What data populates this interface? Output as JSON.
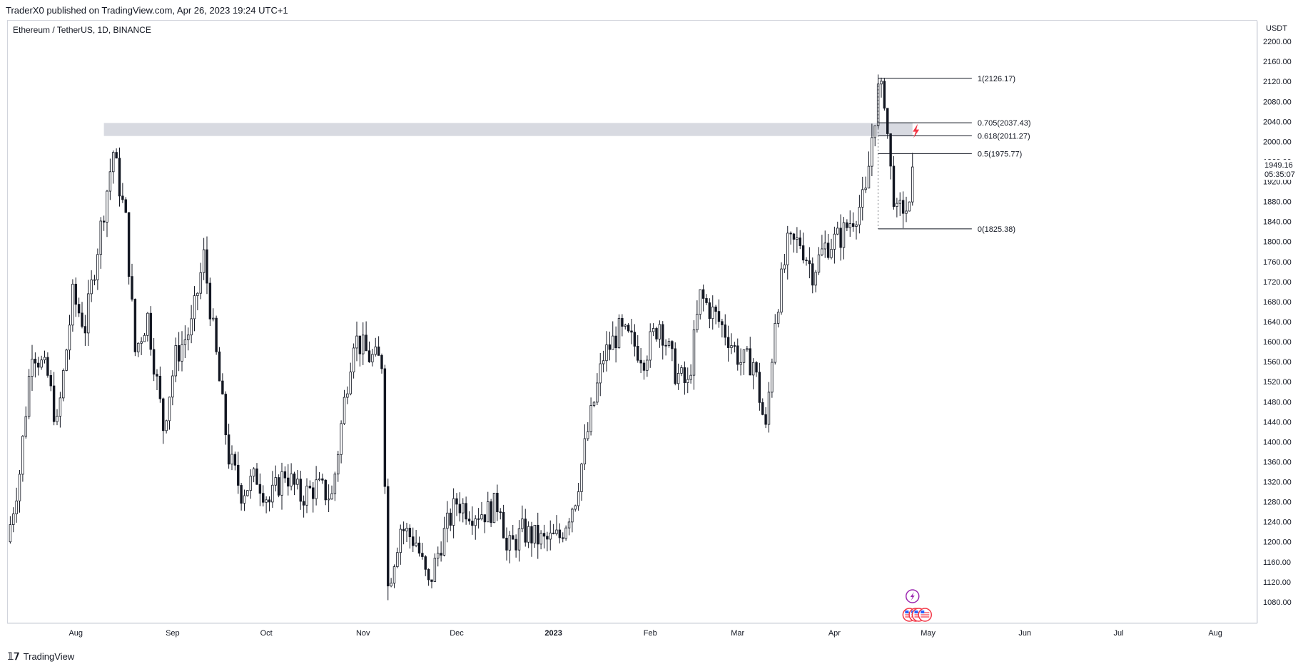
{
  "header": {
    "publish_line": "TraderX0 published on TradingView.com, Apr 26, 2023 19:24 UTC+1",
    "symbol_title": "Ethereum / TetherUS, 1D, BINANCE"
  },
  "footer": {
    "brand": "TradingView",
    "logo_icon": "tradingview-logo-icon"
  },
  "colors": {
    "candle": "#131722",
    "zone": "#d1d4dc",
    "fib_line": "#131722",
    "signal": "#f23645",
    "event_purple": "#9c27b0",
    "event_red": "#f23645"
  },
  "chart_data": {
    "type": "candlestick",
    "title": "Ethereum / TetherUS, 1D, BINANCE",
    "y_unit": "USDT",
    "ylim": [
      1040,
      2240
    ],
    "y_ticks": [
      "2200.00",
      "2160.00",
      "2120.00",
      "2080.00",
      "2040.00",
      "2000.00",
      "1960.00",
      "1920.00",
      "1880.00",
      "1840.00",
      "1800.00",
      "1760.00",
      "1720.00",
      "1680.00",
      "1640.00",
      "1600.00",
      "1560.00",
      "1520.00",
      "1480.00",
      "1440.00",
      "1400.00",
      "1360.00",
      "1320.00",
      "1280.00",
      "1240.00",
      "1200.00",
      "1160.00",
      "1120.00",
      "1080.00"
    ],
    "x_start": "2022-07-10",
    "x_end": "2023-08-14",
    "x_ticks": [
      {
        "label": "Aug",
        "date": "2022-08-01"
      },
      {
        "label": "Sep",
        "date": "2022-09-01"
      },
      {
        "label": "Oct",
        "date": "2022-10-01"
      },
      {
        "label": "Nov",
        "date": "2022-11-01"
      },
      {
        "label": "Dec",
        "date": "2022-12-01"
      },
      {
        "label": "2023",
        "date": "2023-01-01"
      },
      {
        "label": "Feb",
        "date": "2023-02-01"
      },
      {
        "label": "Mar",
        "date": "2023-03-01"
      },
      {
        "label": "Apr",
        "date": "2023-04-01"
      },
      {
        "label": "May",
        "date": "2023-05-01"
      },
      {
        "label": "Jun",
        "date": "2023-06-01"
      },
      {
        "label": "Jul",
        "date": "2023-07-01"
      },
      {
        "label": "Aug",
        "date": "2023-08-01"
      }
    ],
    "price_path": [
      {
        "date": "2022-07-10",
        "close": 1200
      },
      {
        "date": "2022-07-14",
        "close": 1340
      },
      {
        "date": "2022-07-18",
        "close": 1590
      },
      {
        "date": "2022-07-23",
        "close": 1530
      },
      {
        "date": "2022-07-26",
        "close": 1430
      },
      {
        "date": "2022-07-31",
        "close": 1690
      },
      {
        "date": "2022-08-04",
        "close": 1630
      },
      {
        "date": "2022-08-08",
        "close": 1790
      },
      {
        "date": "2022-08-13",
        "close": 1980
      },
      {
        "date": "2022-08-17",
        "close": 1840
      },
      {
        "date": "2022-08-20",
        "close": 1580
      },
      {
        "date": "2022-08-24",
        "close": 1650
      },
      {
        "date": "2022-08-29",
        "close": 1430
      },
      {
        "date": "2022-09-02",
        "close": 1570
      },
      {
        "date": "2022-09-07",
        "close": 1630
      },
      {
        "date": "2022-09-11",
        "close": 1770
      },
      {
        "date": "2022-09-14",
        "close": 1620
      },
      {
        "date": "2022-09-19",
        "close": 1370
      },
      {
        "date": "2022-09-23",
        "close": 1300
      },
      {
        "date": "2022-09-28",
        "close": 1330
      },
      {
        "date": "2022-10-02",
        "close": 1280
      },
      {
        "date": "2022-10-07",
        "close": 1340
      },
      {
        "date": "2022-10-12",
        "close": 1290
      },
      {
        "date": "2022-10-17",
        "close": 1310
      },
      {
        "date": "2022-10-22",
        "close": 1290
      },
      {
        "date": "2022-10-26",
        "close": 1480
      },
      {
        "date": "2022-10-29",
        "close": 1610
      },
      {
        "date": "2022-11-03",
        "close": 1570
      },
      {
        "date": "2022-11-07",
        "close": 1560
      },
      {
        "date": "2022-11-09",
        "close": 1110
      },
      {
        "date": "2022-11-13",
        "close": 1230
      },
      {
        "date": "2022-11-18",
        "close": 1200
      },
      {
        "date": "2022-11-22",
        "close": 1110
      },
      {
        "date": "2022-11-26",
        "close": 1200
      },
      {
        "date": "2022-12-01",
        "close": 1280
      },
      {
        "date": "2022-12-06",
        "close": 1260
      },
      {
        "date": "2022-12-11",
        "close": 1260
      },
      {
        "date": "2022-12-15",
        "close": 1280
      },
      {
        "date": "2022-12-17",
        "close": 1180
      },
      {
        "date": "2022-12-22",
        "close": 1220
      },
      {
        "date": "2022-12-29",
        "close": 1200
      },
      {
        "date": "2023-01-03",
        "close": 1210
      },
      {
        "date": "2023-01-08",
        "close": 1290
      },
      {
        "date": "2023-01-12",
        "close": 1420
      },
      {
        "date": "2023-01-17",
        "close": 1570
      },
      {
        "date": "2023-01-22",
        "close": 1620
      },
      {
        "date": "2023-01-26",
        "close": 1600
      },
      {
        "date": "2023-01-30",
        "close": 1570
      },
      {
        "date": "2023-02-04",
        "close": 1640
      },
      {
        "date": "2023-02-09",
        "close": 1540
      },
      {
        "date": "2023-02-13",
        "close": 1510
      },
      {
        "date": "2023-02-17",
        "close": 1690
      },
      {
        "date": "2023-02-22",
        "close": 1650
      },
      {
        "date": "2023-02-26",
        "close": 1610
      },
      {
        "date": "2023-03-02",
        "close": 1560
      },
      {
        "date": "2023-03-06",
        "close": 1560
      },
      {
        "date": "2023-03-10",
        "close": 1420
      },
      {
        "date": "2023-03-13",
        "close": 1650
      },
      {
        "date": "2023-03-17",
        "close": 1790
      },
      {
        "date": "2023-03-21",
        "close": 1800
      },
      {
        "date": "2023-03-25",
        "close": 1740
      },
      {
        "date": "2023-03-29",
        "close": 1790
      },
      {
        "date": "2023-04-03",
        "close": 1810
      },
      {
        "date": "2023-04-08",
        "close": 1860
      },
      {
        "date": "2023-04-11",
        "close": 1890
      },
      {
        "date": "2023-04-13",
        "close": 2010
      },
      {
        "date": "2023-04-15",
        "close": 2100
      },
      {
        "date": "2023-04-17",
        "close": 2090
      },
      {
        "date": "2023-04-19",
        "close": 1940
      },
      {
        "date": "2023-04-21",
        "close": 1850
      },
      {
        "date": "2023-04-23",
        "close": 1870
      },
      {
        "date": "2023-04-25",
        "close": 1860
      },
      {
        "date": "2023-04-26",
        "close": 1949.16
      }
    ],
    "current_price": {
      "value": "1949.16",
      "countdown": "05:35:07"
    },
    "resistance_zone": {
      "from_date": "2022-08-10",
      "to_date": "2023-04-26",
      "low": 2011,
      "high": 2037
    },
    "fib_retracement": {
      "from_date": "2023-04-15",
      "to_date": "2023-05-15",
      "levels": [
        {
          "label": "1(2126.17)",
          "value": 2126.17
        },
        {
          "label": "0.705(2037.43)",
          "value": 2037.43
        },
        {
          "label": "0.618(2011.27)",
          "value": 2011.27
        },
        {
          "label": "0.5(1975.77)",
          "value": 1975.77
        },
        {
          "label": "0(1825.38)",
          "value": 1825.38
        }
      ]
    },
    "signal_marker": {
      "icon": "lightning-icon",
      "date": "2023-04-27",
      "value": 2021
    },
    "events": [
      {
        "icon": "lightning-circle-icon",
        "date": "2023-04-26"
      },
      {
        "icon": "us-flag-event-icon",
        "date": "2023-04-25"
      },
      {
        "icon": "us-flag-event-icon",
        "date": "2023-04-27"
      },
      {
        "icon": "us-flag-event-icon",
        "date": "2023-04-28"
      },
      {
        "icon": "us-flag-event-icon",
        "date": "2023-04-30"
      }
    ]
  }
}
